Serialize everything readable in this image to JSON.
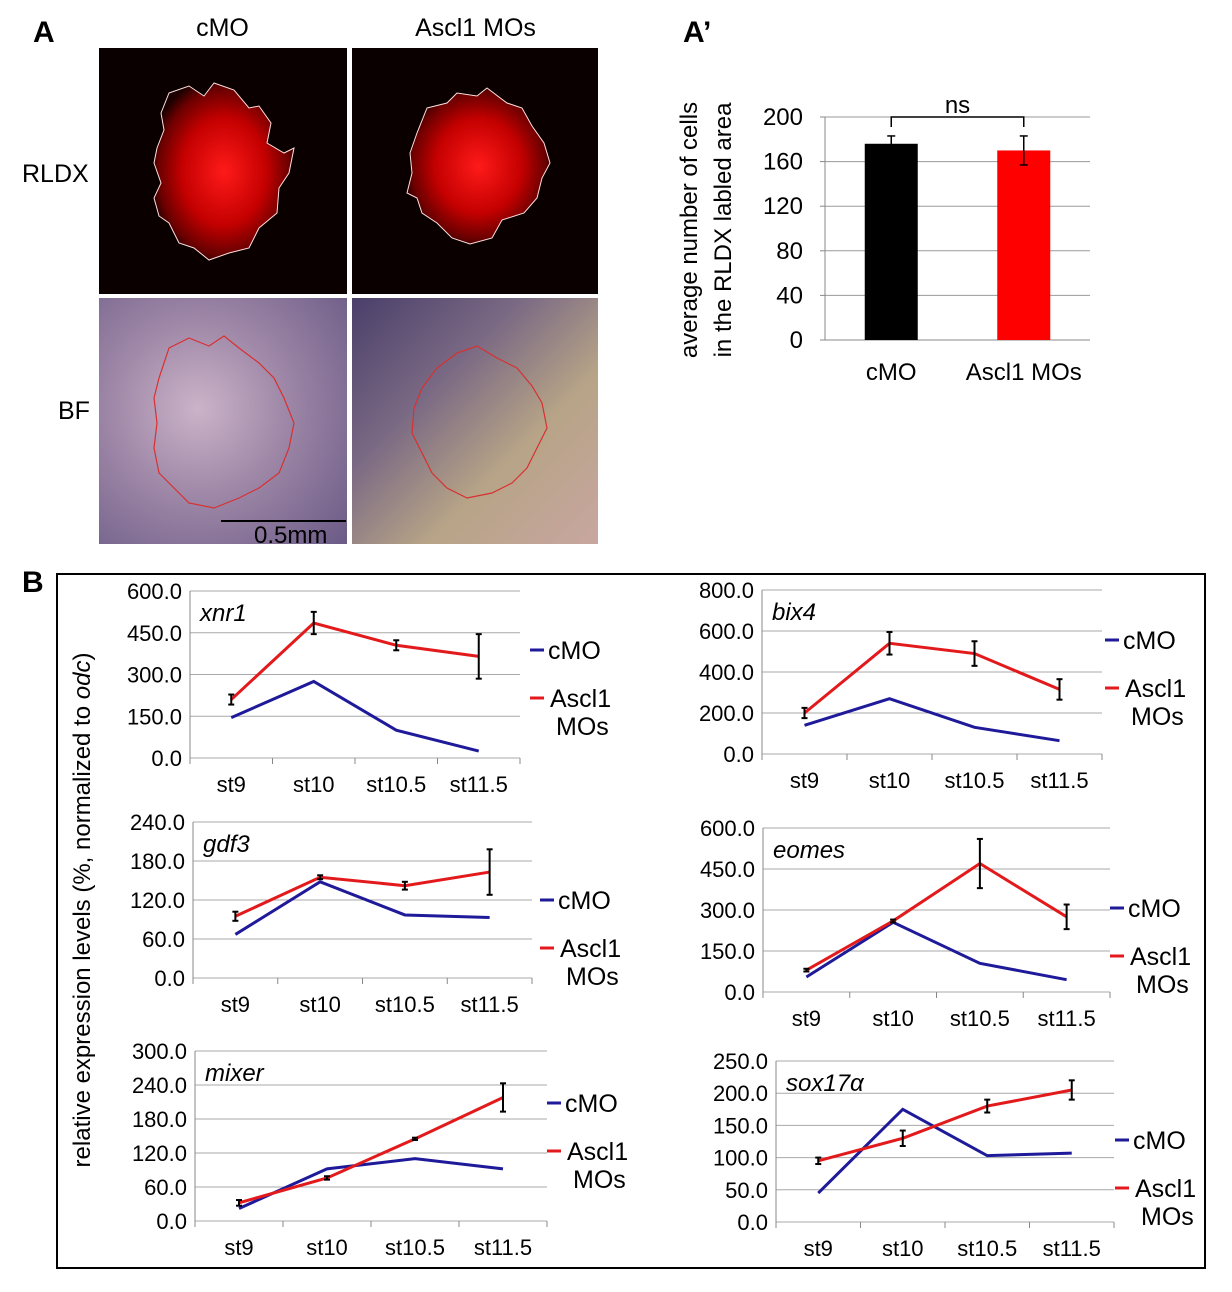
{
  "panel_labels": {
    "a": "A",
    "a_prime": "A’",
    "b": "B"
  },
  "panel_a": {
    "col_titles": [
      "cMO",
      "Ascl1 MOs"
    ],
    "row_labels": [
      "RLDX",
      "BF"
    ],
    "scale_bar": "0.5mm"
  },
  "panel_b_ylabel": "relative expression levels (%, normalized to odc)",
  "chart_data": [
    {
      "id": "a_prime",
      "type": "bar",
      "ylabel_lines": [
        "average number of cells",
        "in the RLDX labled area"
      ],
      "categories": [
        "cMO",
        "Ascl1 MOs"
      ],
      "values": [
        176,
        170
      ],
      "errors": [
        7,
        13
      ],
      "colors": [
        "#000000",
        "#ff0000"
      ],
      "ylim": [
        0,
        200
      ],
      "yticks": [
        "0",
        "40",
        "80",
        "120",
        "160",
        "200"
      ],
      "significance": "ns",
      "grid": true
    },
    {
      "id": "xnr1",
      "type": "line",
      "gene": "xnr1",
      "categories": [
        "st9",
        "st10",
        "st10.5",
        "st11.5"
      ],
      "ylim": [
        0,
        600
      ],
      "yticks": [
        "0.0",
        "150.0",
        "300.0",
        "450.0",
        "600.0"
      ],
      "series": [
        {
          "name": "cMO",
          "color": "#1f1a99",
          "values": [
            145,
            275,
            100,
            25
          ]
        },
        {
          "name": "Ascl1 MOs",
          "color": "#e31a1c",
          "values": [
            210,
            485,
            405,
            365
          ],
          "errors": [
            18,
            40,
            18,
            80
          ]
        }
      ]
    },
    {
      "id": "bix4",
      "type": "line",
      "gene": "bix4",
      "categories": [
        "st9",
        "st10",
        "st10.5",
        "st11.5"
      ],
      "ylim": [
        0,
        800
      ],
      "yticks": [
        "0.0",
        "200.0",
        "400.0",
        "600.0",
        "800.0"
      ],
      "series": [
        {
          "name": "cMO",
          "color": "#1f1a99",
          "values": [
            140,
            270,
            130,
            65
          ]
        },
        {
          "name": "Ascl1 MOs",
          "color": "#e31a1c",
          "values": [
            200,
            540,
            490,
            315
          ],
          "errors": [
            25,
            55,
            60,
            50
          ]
        }
      ]
    },
    {
      "id": "gdf3",
      "type": "line",
      "gene": "gdf3",
      "categories": [
        "st9",
        "st10",
        "st10.5",
        "st11.5"
      ],
      "ylim": [
        0,
        240
      ],
      "yticks": [
        "0.0",
        "60.0",
        "120.0",
        "180.0",
        "240.0"
      ],
      "series": [
        {
          "name": "cMO",
          "color": "#1f1a99",
          "values": [
            67,
            148,
            97,
            93
          ]
        },
        {
          "name": "Ascl1 MOs",
          "color": "#e31a1c",
          "values": [
            95,
            155,
            142,
            163
          ],
          "errors": [
            7,
            3,
            6,
            35
          ]
        }
      ]
    },
    {
      "id": "eomes",
      "type": "line",
      "gene": "eomes",
      "categories": [
        "st9",
        "st10",
        "st10.5",
        "st11.5"
      ],
      "ylim": [
        0,
        600
      ],
      "yticks": [
        "0.0",
        "150.0",
        "300.0",
        "450.0",
        "600.0"
      ],
      "series": [
        {
          "name": "cMO",
          "color": "#1f1a99",
          "values": [
            55,
            255,
            105,
            45
          ]
        },
        {
          "name": "Ascl1 MOs",
          "color": "#e31a1c",
          "values": [
            80,
            260,
            470,
            275
          ],
          "errors": [
            5,
            5,
            90,
            45
          ]
        }
      ]
    },
    {
      "id": "mixer",
      "type": "line",
      "gene": "mixer",
      "categories": [
        "st9",
        "st10",
        "st10.5",
        "st11.5"
      ],
      "ylim": [
        0,
        300
      ],
      "yticks": [
        "0.0",
        "60.0",
        "120.0",
        "180.0",
        "240.0",
        "300.0"
      ],
      "series": [
        {
          "name": "cMO",
          "color": "#1f1a99",
          "values": [
            22,
            92,
            110,
            92
          ]
        },
        {
          "name": "Ascl1 MOs",
          "color": "#e31a1c",
          "values": [
            32,
            76,
            145,
            218
          ],
          "errors": [
            5,
            3,
            2,
            25
          ]
        }
      ]
    },
    {
      "id": "sox17a",
      "type": "line",
      "gene": "sox17α",
      "categories": [
        "st9",
        "st10",
        "st10.5",
        "st11.5"
      ],
      "ylim": [
        0,
        250
      ],
      "yticks": [
        "0.0",
        "50.0",
        "100.0",
        "150.0",
        "200.0",
        "250.0"
      ],
      "series": [
        {
          "name": "cMO",
          "color": "#1f1a99",
          "values": [
            45,
            175,
            103,
            107
          ]
        },
        {
          "name": "Ascl1 MOs",
          "color": "#e31a1c",
          "values": [
            95,
            130,
            180,
            205
          ],
          "errors": [
            5,
            12,
            10,
            15
          ]
        }
      ]
    }
  ],
  "legend_labels": {
    "cmo": "cMO",
    "ascl1_line1": "Ascl1",
    "ascl1_line2": "MOs"
  }
}
